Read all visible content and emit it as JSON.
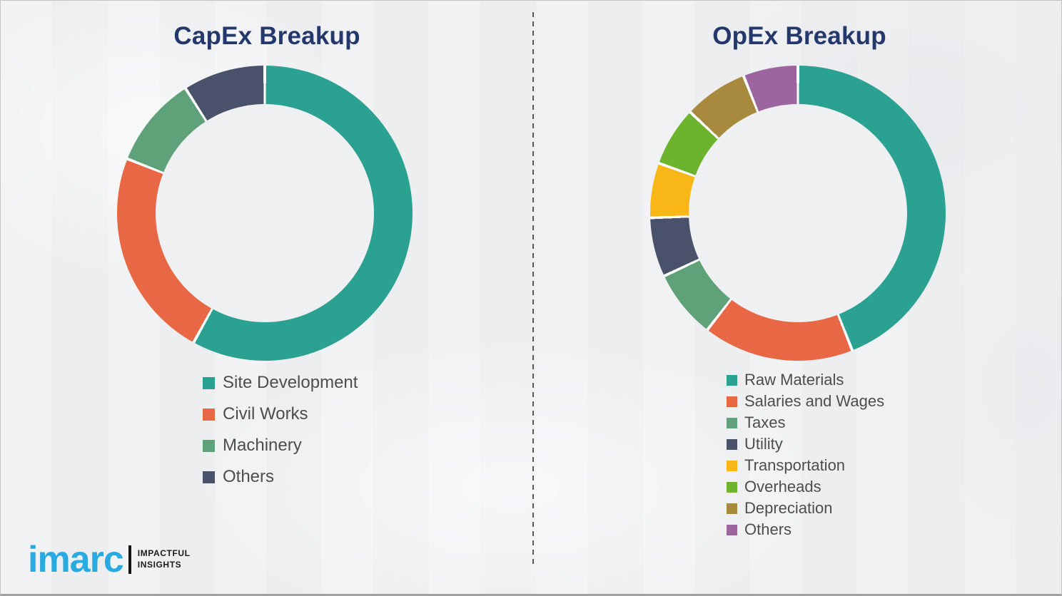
{
  "page": {
    "background_color": "#eff0f1",
    "divider_color": "#595959",
    "title_color": "#24386b",
    "legend_text_color": "#4d4d4d"
  },
  "chart_data": [
    {
      "type": "pie",
      "variant": "donut",
      "title": "CapEx Breakup",
      "labels": [
        "Site Development",
        "Civil Works",
        "Machinery",
        "Others"
      ],
      "values": [
        58,
        23,
        10,
        9
      ],
      "colors": [
        "#2aa191",
        "#e86745",
        "#5fa178",
        "#4a526b"
      ],
      "start_angle_deg": 0,
      "direction": "clockwise",
      "hole_ratio": 0.74,
      "legend_position": "below",
      "value_unit": "percent-share-estimated"
    },
    {
      "type": "pie",
      "variant": "donut",
      "title": "OpEx Breakup",
      "labels": [
        "Raw Materials",
        "Salaries and Wages",
        "Taxes",
        "Utility",
        "Transportation",
        "Overheads",
        "Depreciation",
        "Others"
      ],
      "values": [
        44,
        16.5,
        7.5,
        6.5,
        6,
        6.5,
        7,
        6
      ],
      "colors": [
        "#2aa191",
        "#e86745",
        "#5fa178",
        "#4a526b",
        "#f8b716",
        "#6cb32e",
        "#a88a3e",
        "#9d65a0"
      ],
      "start_angle_deg": 0,
      "direction": "clockwise",
      "hole_ratio": 0.74,
      "legend_position": "below",
      "value_unit": "percent-share-estimated"
    }
  ],
  "logo": {
    "wordmark": "imarc",
    "tagline_top": "IMPACTFUL",
    "tagline_bottom": "INSIGHTS",
    "brand_blue": "#29abe2"
  }
}
